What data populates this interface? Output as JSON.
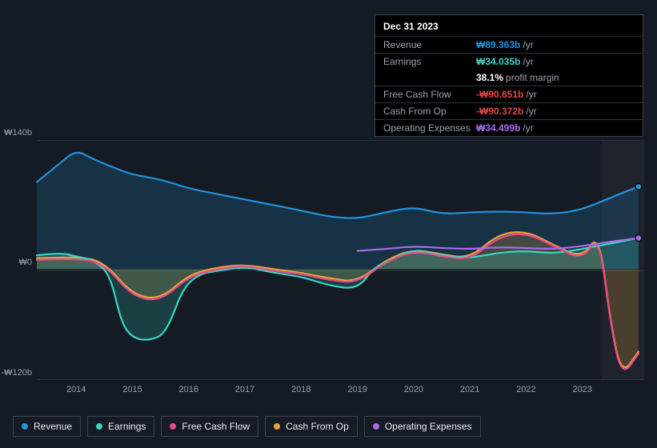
{
  "colors": {
    "revenue": "#2394df",
    "earnings": "#39d6c1",
    "fcf": "#e94a8a",
    "cfo": "#eaa23b",
    "opex": "#a96cf1",
    "bg": "#151b24",
    "grid": "#2a3140",
    "text_muted": "#9aa0ab",
    "text": "#ffffff",
    "neg": "#e64545"
  },
  "tooltip": {
    "date": "Dec 31 2023",
    "rows": [
      {
        "label": "Revenue",
        "value": "₩89.363b",
        "color": "#2394df",
        "unit": "/yr"
      },
      {
        "label": "Earnings",
        "value": "₩34.035b",
        "color": "#39d6c1",
        "unit": "/yr"
      },
      {
        "label": "",
        "value": "38.1%",
        "color": "#ffffff",
        "unit": "profit margin",
        "noborder": true
      },
      {
        "label": "Free Cash Flow",
        "value": "-₩90.651b",
        "color": "#e64545",
        "unit": "/yr"
      },
      {
        "label": "Cash From Op",
        "value": "-₩90.372b",
        "color": "#e64545",
        "unit": "/yr"
      },
      {
        "label": "Operating Expenses",
        "value": "₩34.499b",
        "color": "#a96cf1",
        "unit": "/yr"
      }
    ]
  },
  "chart": {
    "type": "line-area",
    "x_years": [
      "2014",
      "2015",
      "2016",
      "2017",
      "2018",
      "2019",
      "2020",
      "2021",
      "2022",
      "2023"
    ],
    "y_ticks": [
      {
        "label": "₩140b",
        "v": 140
      },
      {
        "label": "₩0",
        "v": 0
      },
      {
        "label": "-₩120b",
        "v": -120
      }
    ],
    "ylim": [
      -120,
      140
    ],
    "xlim": [
      2013.3,
      2024.1
    ],
    "highlight_x": 2023.85,
    "line_width": 2.2,
    "series": {
      "revenue": {
        "color": "#2394df",
        "fill_opacity": 0.18,
        "pts": [
          [
            2013.3,
            95
          ],
          [
            2013.7,
            115
          ],
          [
            2014.0,
            130
          ],
          [
            2014.3,
            120
          ],
          [
            2014.7,
            110
          ],
          [
            2015.0,
            103
          ],
          [
            2015.5,
            98
          ],
          [
            2016.0,
            88
          ],
          [
            2016.5,
            82
          ],
          [
            2017.0,
            76
          ],
          [
            2017.5,
            70
          ],
          [
            2018.0,
            64
          ],
          [
            2018.5,
            57
          ],
          [
            2019.0,
            55
          ],
          [
            2019.5,
            62
          ],
          [
            2020.0,
            68
          ],
          [
            2020.5,
            60
          ],
          [
            2021.0,
            62
          ],
          [
            2021.5,
            63
          ],
          [
            2022.0,
            62
          ],
          [
            2022.5,
            60
          ],
          [
            2023.0,
            65
          ],
          [
            2023.5,
            78
          ],
          [
            2024.0,
            90
          ]
        ]
      },
      "earnings": {
        "color": "#39d6c1",
        "fill_opacity": 0.2,
        "pts": [
          [
            2013.3,
            15
          ],
          [
            2013.7,
            18
          ],
          [
            2014.0,
            14
          ],
          [
            2014.3,
            10
          ],
          [
            2014.6,
            -5
          ],
          [
            2014.8,
            -58
          ],
          [
            2015.0,
            -75
          ],
          [
            2015.3,
            -78
          ],
          [
            2015.6,
            -70
          ],
          [
            2015.9,
            -20
          ],
          [
            2016.2,
            -5
          ],
          [
            2016.5,
            -2
          ],
          [
            2017.0,
            3
          ],
          [
            2017.5,
            -4
          ],
          [
            2018.0,
            -8
          ],
          [
            2018.5,
            -18
          ],
          [
            2019.0,
            -22
          ],
          [
            2019.3,
            2
          ],
          [
            2019.6,
            10
          ],
          [
            2020.0,
            22
          ],
          [
            2020.5,
            15
          ],
          [
            2021.0,
            12
          ],
          [
            2021.5,
            18
          ],
          [
            2022.0,
            20
          ],
          [
            2022.5,
            17
          ],
          [
            2023.0,
            22
          ],
          [
            2023.5,
            28
          ],
          [
            2024.0,
            34
          ]
        ]
      },
      "fcf": {
        "color": "#e94a8a",
        "fill_opacity": 0.0,
        "pts": [
          [
            2013.3,
            10
          ],
          [
            2014.0,
            12
          ],
          [
            2014.5,
            6
          ],
          [
            2015.0,
            -30
          ],
          [
            2015.5,
            -35
          ],
          [
            2016.0,
            -8
          ],
          [
            2016.5,
            0
          ],
          [
            2017.0,
            4
          ],
          [
            2017.5,
            -2
          ],
          [
            2018.0,
            -5
          ],
          [
            2018.5,
            -12
          ],
          [
            2019.0,
            -15
          ],
          [
            2019.5,
            8
          ],
          [
            2020.0,
            20
          ],
          [
            2020.5,
            14
          ],
          [
            2021.0,
            10
          ],
          [
            2021.5,
            35
          ],
          [
            2022.0,
            40
          ],
          [
            2022.5,
            25
          ],
          [
            2023.0,
            10
          ],
          [
            2023.3,
            38
          ],
          [
            2023.5,
            -60
          ],
          [
            2023.7,
            -118
          ],
          [
            2024.0,
            -92
          ]
        ]
      },
      "cfo": {
        "color": "#eaa23b",
        "fill_opacity": 0.22,
        "pts": [
          [
            2013.3,
            12
          ],
          [
            2014.0,
            14
          ],
          [
            2014.5,
            8
          ],
          [
            2015.0,
            -28
          ],
          [
            2015.5,
            -33
          ],
          [
            2016.0,
            -6
          ],
          [
            2016.5,
            2
          ],
          [
            2017.0,
            5
          ],
          [
            2017.5,
            0
          ],
          [
            2018.0,
            -4
          ],
          [
            2018.5,
            -10
          ],
          [
            2019.0,
            -14
          ],
          [
            2019.5,
            10
          ],
          [
            2020.0,
            22
          ],
          [
            2020.5,
            16
          ],
          [
            2021.0,
            12
          ],
          [
            2021.5,
            38
          ],
          [
            2022.0,
            42
          ],
          [
            2022.5,
            26
          ],
          [
            2023.0,
            12
          ],
          [
            2023.3,
            40
          ],
          [
            2023.5,
            -58
          ],
          [
            2023.7,
            -116
          ],
          [
            2024.0,
            -90
          ]
        ]
      },
      "opex": {
        "color": "#a96cf1",
        "fill_opacity": 0.0,
        "pts": [
          [
            2019.0,
            20
          ],
          [
            2019.5,
            22
          ],
          [
            2020.0,
            25
          ],
          [
            2020.5,
            23
          ],
          [
            2021.0,
            22
          ],
          [
            2021.5,
            24
          ],
          [
            2022.0,
            23
          ],
          [
            2022.5,
            22
          ],
          [
            2023.0,
            25
          ],
          [
            2023.5,
            30
          ],
          [
            2024.0,
            34
          ]
        ]
      }
    }
  },
  "legend": [
    {
      "label": "Revenue",
      "color": "#2394df"
    },
    {
      "label": "Earnings",
      "color": "#39d6c1"
    },
    {
      "label": "Free Cash Flow",
      "color": "#e94a8a"
    },
    {
      "label": "Cash From Op",
      "color": "#eaa23b"
    },
    {
      "label": "Operating Expenses",
      "color": "#a96cf1"
    }
  ]
}
